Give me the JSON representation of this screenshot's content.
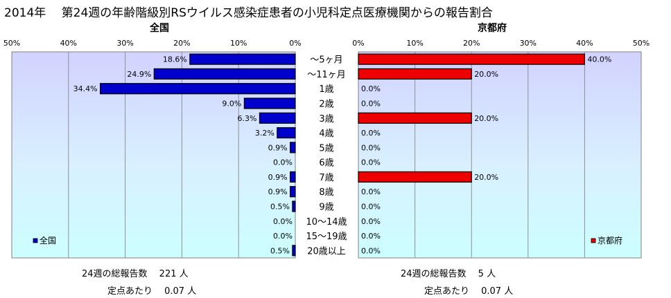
{
  "title": "2014年　 第24週の年齢階級別RSウイルス感染症患者の小児科定点医療機関からの報告割合",
  "chart_data": [
    {
      "type": "bar",
      "panel_title": "全国",
      "legend": "全国",
      "legend_placement": "bottom-left",
      "orientation": "horizontal-reversed",
      "categories": [
        "～5ヶ月",
        "～11ヶ月",
        "1歳",
        "2歳",
        "3歳",
        "4歳",
        "5歳",
        "6歳",
        "7歳",
        "8歳",
        "9歳",
        "10～14歳",
        "15～19歳",
        "20歳以上"
      ],
      "values": [
        18.6,
        24.9,
        34.4,
        9.0,
        6.3,
        3.2,
        0.9,
        0.0,
        0.9,
        0.9,
        0.5,
        0.0,
        0.0,
        0.5
      ],
      "value_labels": [
        "18.6%",
        "24.9%",
        "34.4%",
        "9.0%",
        "6.3%",
        "3.2%",
        "0.9%",
        "0.0%",
        "0.9%",
        "0.9%",
        "0.5%",
        "0.0%",
        "0.0%",
        "0.5%"
      ],
      "xlim": [
        0,
        50
      ],
      "ticks": [
        "50%",
        "40%",
        "30%",
        "20%",
        "10%",
        "0%"
      ],
      "color": "#0000CC",
      "grid": true
    },
    {
      "type": "bar",
      "panel_title": "京都府",
      "legend": "京都府",
      "legend_placement": "bottom-right",
      "orientation": "horizontal",
      "categories": [
        "～5ヶ月",
        "～11ヶ月",
        "1歳",
        "2歳",
        "3歳",
        "4歳",
        "5歳",
        "6歳",
        "7歳",
        "8歳",
        "9歳",
        "10～14歳",
        "15～19歳",
        "20歳以上"
      ],
      "values": [
        40.0,
        20.0,
        0.0,
        0.0,
        20.0,
        0.0,
        0.0,
        0.0,
        20.0,
        0.0,
        0.0,
        0.0,
        0.0,
        0.0
      ],
      "value_labels": [
        "40.0%",
        "20.0%",
        "0.0%",
        "0.0%",
        "20.0%",
        "0.0%",
        "0.0%",
        "0.0%",
        "20.0%",
        "0.0%",
        "0.0%",
        "0.0%",
        "0.0%",
        "0.0%"
      ],
      "xlim": [
        0,
        50
      ],
      "ticks": [
        "0%",
        "10%",
        "20%",
        "30%",
        "40%",
        "50%"
      ],
      "color": "#EE0000",
      "grid": true
    }
  ],
  "stats": {
    "national_total": "24週の総報告数　 221 人",
    "national_per": "定点あたり　 0.07 人",
    "kyoto_total": "24週の総報告数　 5 人",
    "kyoto_per": "定点あたり　 0.07 人"
  }
}
